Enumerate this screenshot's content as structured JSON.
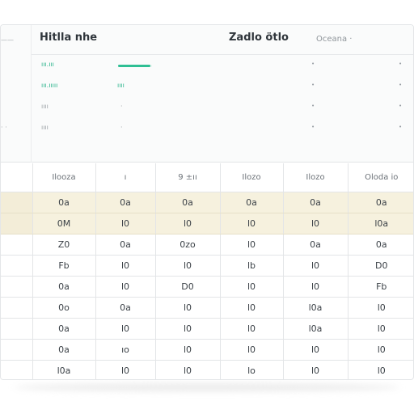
{
  "summary": {
    "left_labels": [
      "——",
      "· ·"
    ],
    "title_left": "Hitlla nhe",
    "title_right": "Zadlo ötlo",
    "third_header": "Oceana ·",
    "rows": [
      {
        "label": "ııı.ııı",
        "value": "",
        "progress": 0.95,
        "style": "accent"
      },
      {
        "label": "ııı.ııııı",
        "value": "ıııı",
        "progress": null,
        "style": "accent"
      },
      {
        "label": "ıııı",
        "value": "·",
        "progress": null,
        "style": "muted"
      },
      {
        "label": "ıııı",
        "value": "·",
        "progress": null,
        "style": "muted"
      }
    ]
  },
  "table": {
    "headers": [
      "",
      "Ilooza",
      "ı",
      "9 ±ıı",
      "Ilozo",
      "Ilozo",
      "Oloda io"
    ],
    "rows": [
      [
        "",
        "0a",
        "0a",
        "0a",
        "0a",
        "0a",
        "0a"
      ],
      [
        "",
        "0M",
        "l0",
        "l0",
        "l0",
        "l0",
        "l0a"
      ],
      [
        "",
        "Z0",
        "0a",
        "0zo",
        "l0",
        "0a",
        "0a"
      ],
      [
        "",
        "Fb",
        "l0",
        "l0",
        "lb",
        "l0",
        "D0"
      ],
      [
        "",
        "0a",
        "l0",
        "D0",
        "l0",
        "l0",
        "Fb"
      ],
      [
        "",
        "0o",
        "0a",
        "l0",
        "l0",
        "l0a",
        "l0"
      ],
      [
        "",
        "0a",
        "l0",
        "l0",
        "l0",
        "l0a",
        "l0"
      ],
      [
        "",
        "0a",
        "ıo",
        "l0",
        "l0",
        "l0",
        "l0"
      ],
      [
        "",
        "l0a",
        "l0",
        "l0",
        "lo",
        "l0",
        "l0"
      ]
    ]
  }
}
